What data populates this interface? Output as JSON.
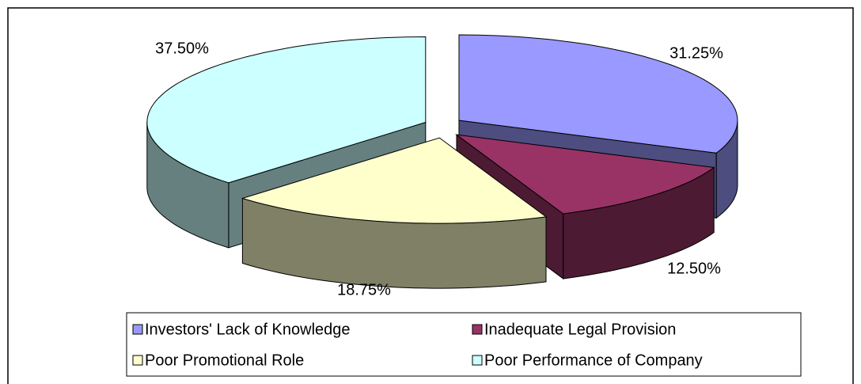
{
  "chart_data": {
    "type": "pie3d",
    "categories": [
      "Investors' Lack of Knowledge",
      "Inadequate Legal Provision",
      "Poor Promotional Role",
      "Poor Performance of Company"
    ],
    "values": [
      31.25,
      12.5,
      18.75,
      37.5
    ],
    "value_labels": [
      "31.25%",
      "12.50%",
      "18.75%",
      "37.50%"
    ],
    "colors": [
      "#9999ff",
      "#993366",
      "#ffffcc",
      "#ccffff"
    ],
    "side_colors": [
      "#4d4d80",
      "#4d1a33",
      "#808066",
      "#668080"
    ],
    "legend": "bottom"
  }
}
